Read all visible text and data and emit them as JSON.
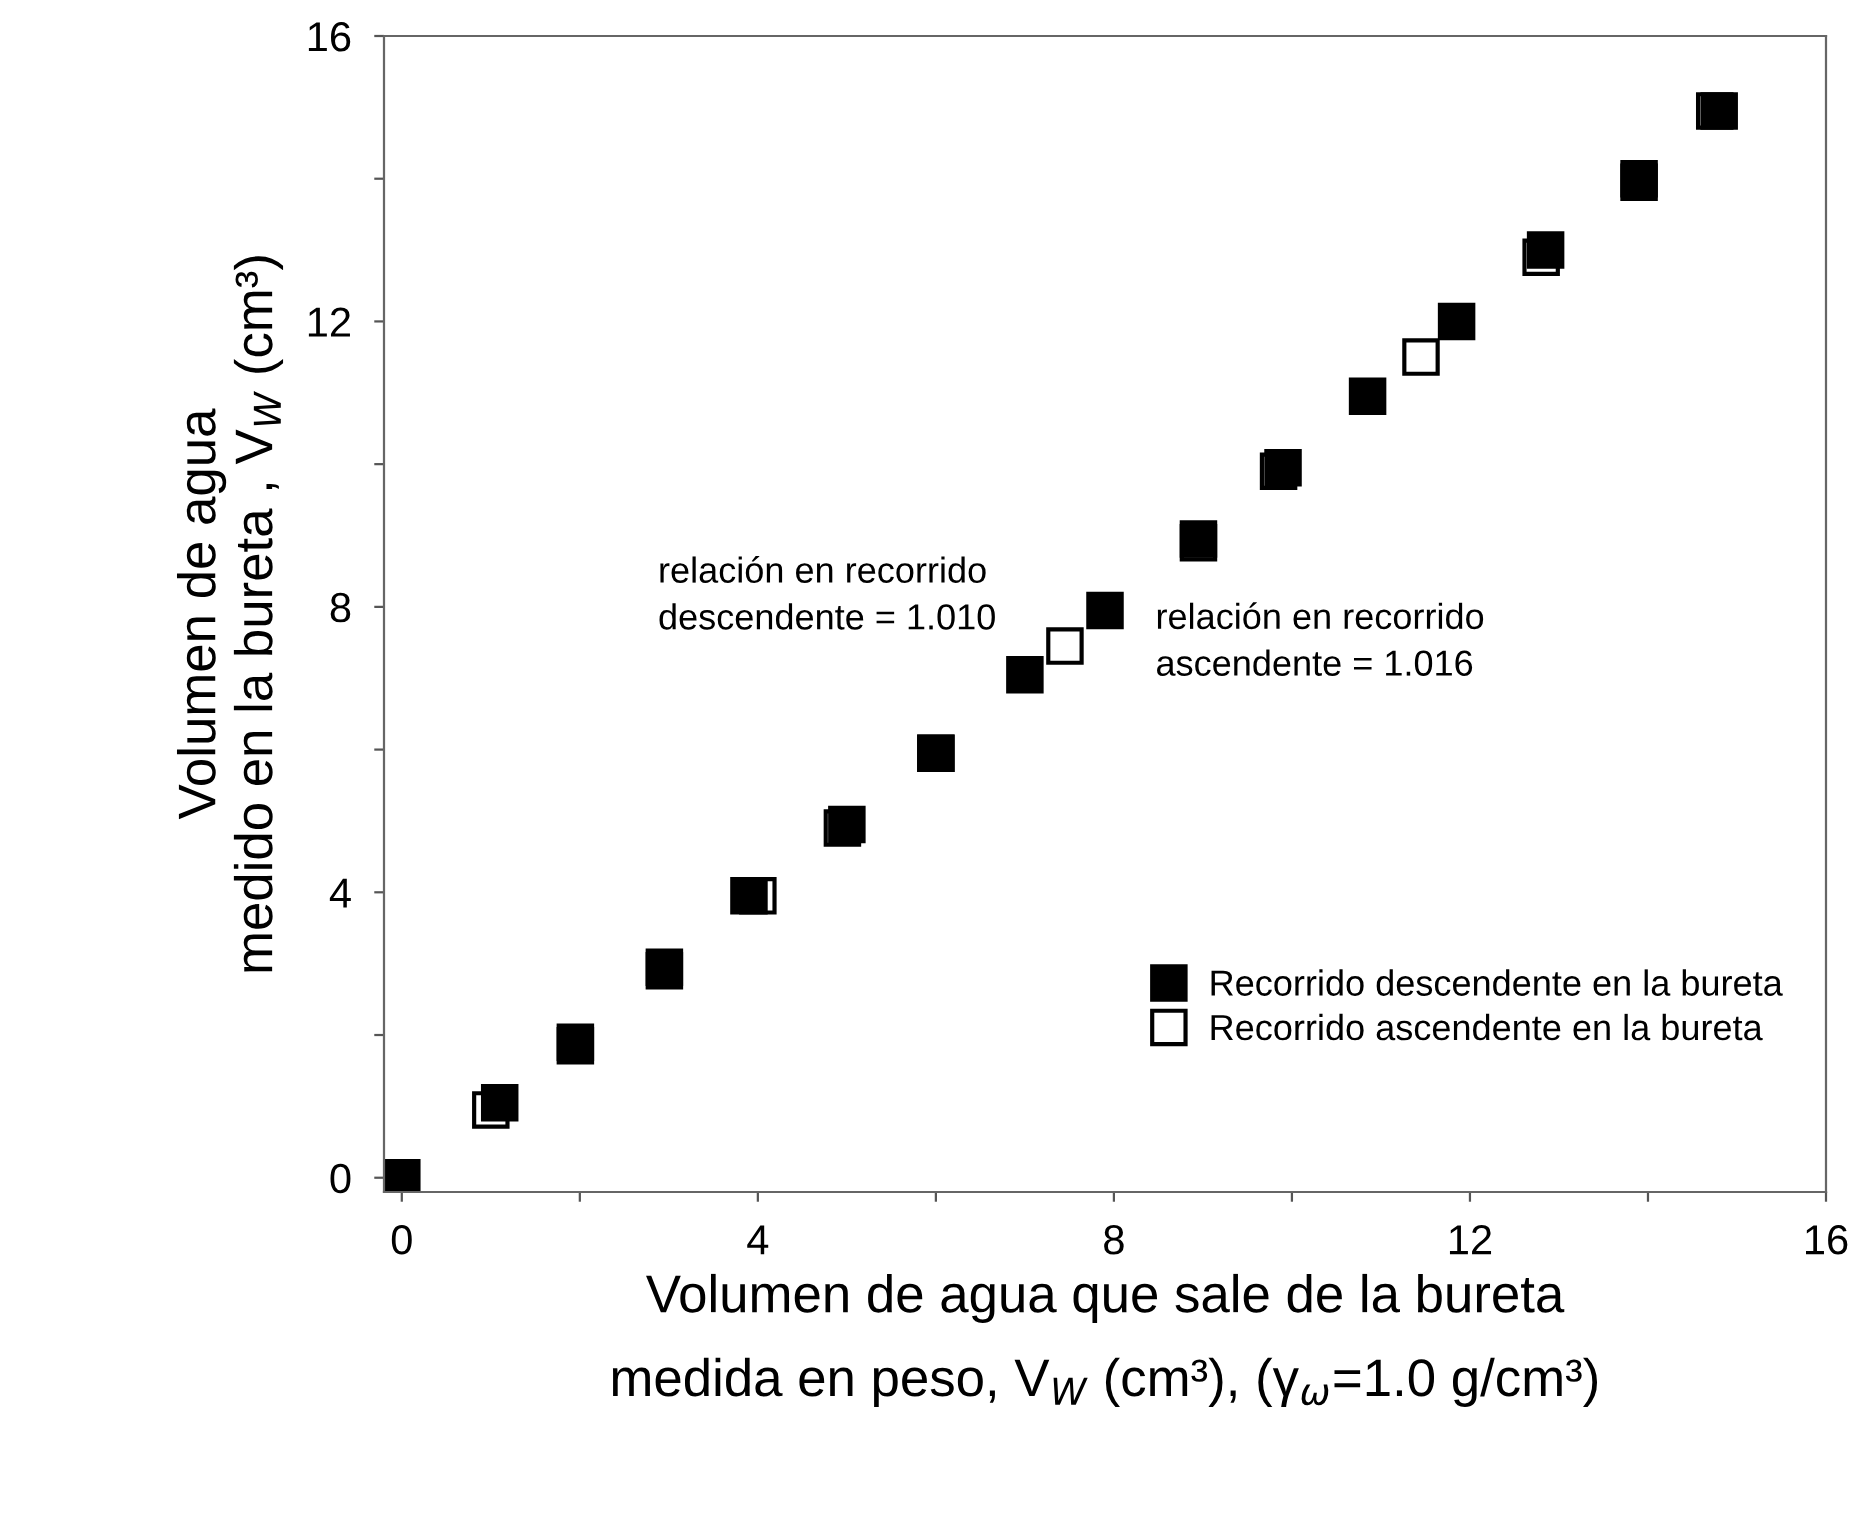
{
  "chart_data": {
    "type": "scatter",
    "xlabel": "Volumen de agua que sale de la bureta\nmedida en peso, V$_{W}$ (cm³), (γ$_{ω}$=1.0 g/cm³)",
    "ylabel": "Volumen de agua\nmedido en la bureta , V$_{W}$ (cm³)",
    "xlim": [
      -0.2,
      16
    ],
    "ylim": [
      -0.2,
      16
    ],
    "xticks": [
      0,
      {
        "value": 2,
        "label": null
      },
      4,
      {
        "value": 6,
        "label": null
      },
      8,
      {
        "value": 10,
        "label": null
      },
      12,
      {
        "value": 14,
        "label": null
      },
      16
    ],
    "yticks": [
      0,
      {
        "value": 2,
        "label": null
      },
      4,
      {
        "value": 6,
        "label": null
      },
      8,
      {
        "value": 10,
        "label": null
      },
      12,
      {
        "value": 14,
        "label": null
      },
      16
    ],
    "grid": false,
    "legend": "bottom right",
    "marker": "square",
    "series": [
      {
        "name": "Recorrido descendente en la bureta",
        "color": "#000000",
        "x": [
          0,
          1.1,
          1.95,
          2.95,
          3.9,
          5,
          6,
          7,
          7.9,
          8.95,
          9.9,
          10.85,
          11.85,
          12.85,
          13.9,
          14.8
        ],
        "values": [
          0,
          1.05,
          1.9,
          2.95,
          3.95,
          4.95,
          5.95,
          7.05,
          7.95,
          8.95,
          9.95,
          10.95,
          12,
          13,
          14,
          14.95
        ]
      },
      {
        "name": "Recorrido ascendente en la bureta",
        "color": "#000000",
        "x": [
          1,
          1.95,
          2.95,
          4,
          4.95,
          6,
          7.45,
          8.95,
          9.85,
          11.45,
          12.8,
          13.9,
          14.75
        ],
        "values": [
          0.95,
          1.85,
          2.9,
          3.95,
          4.9,
          5.95,
          7.45,
          8.9,
          9.9,
          11.5,
          12.9,
          13.95,
          14.95
        ]
      }
    ],
    "annotations": [
      "relación en recorrido\ndescendente = 1.010",
      "relación en recorrido\nascendente = 1.016"
    ]
  }
}
